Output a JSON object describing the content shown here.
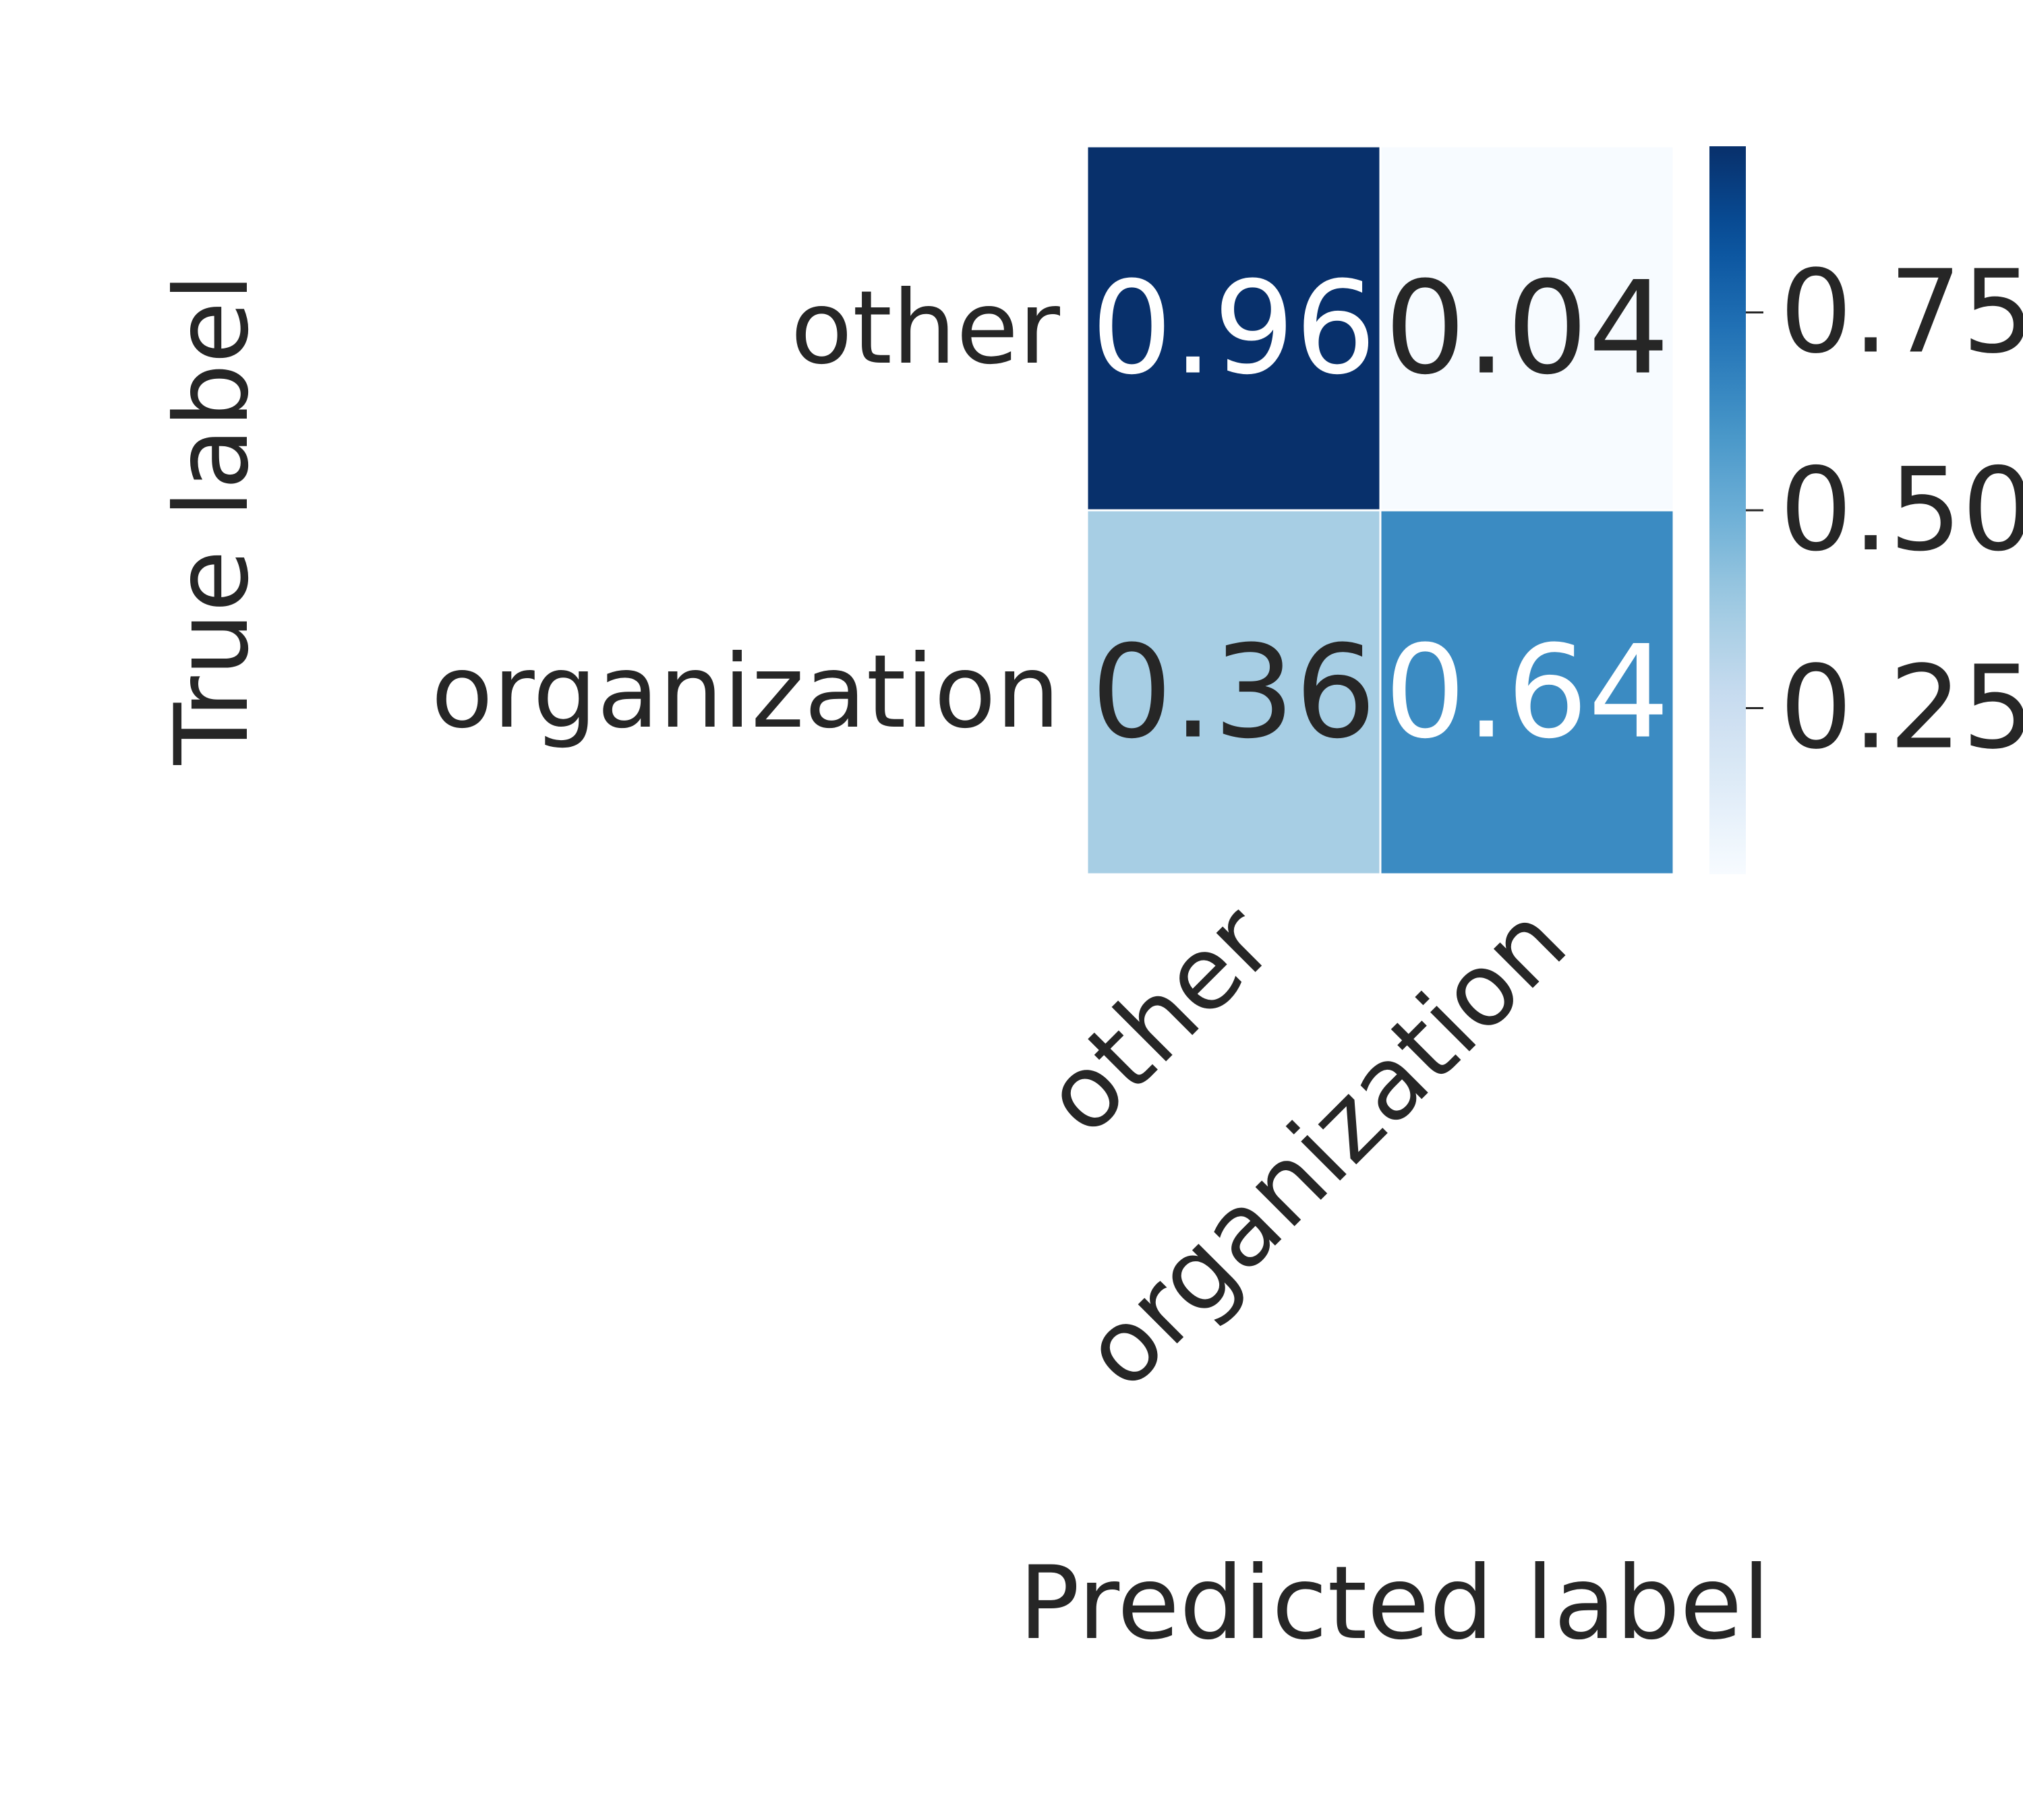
{
  "chart_data": {
    "type": "heatmap",
    "title": "",
    "xlabel": "Predicted label",
    "ylabel": "True label",
    "x_categories": [
      "other",
      "organization"
    ],
    "y_categories": [
      "other",
      "organization"
    ],
    "values": [
      [
        0.96,
        0.04
      ],
      [
        0.36,
        0.64
      ]
    ],
    "cell_labels": [
      [
        "0.96",
        "0.04"
      ],
      [
        "0.36",
        "0.64"
      ]
    ],
    "colorbar": {
      "ticks": [
        0.25,
        0.5,
        0.75
      ],
      "tick_labels": [
        "0.25",
        "0.50",
        "0.75"
      ],
      "range": [
        0.04,
        0.96
      ],
      "colormap": "Blues"
    },
    "colors": {
      "low": "#f7fbff",
      "high": "#08306b",
      "text_dark": "#262626",
      "text_light": "#ffffff"
    }
  }
}
